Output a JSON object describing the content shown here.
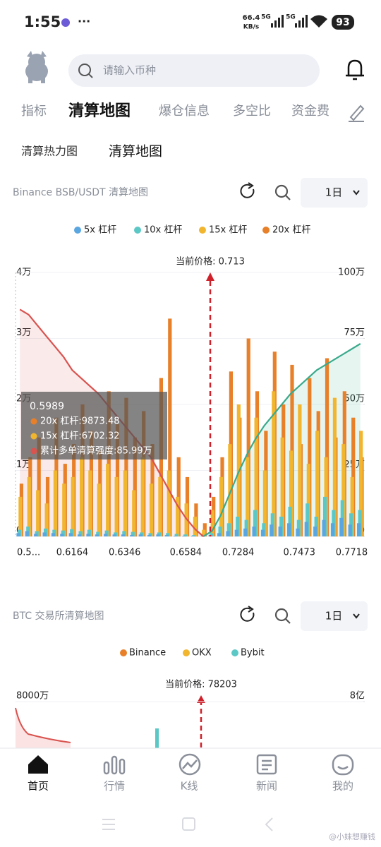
{
  "status_bar": {
    "time": "1:55",
    "speed": "66.4",
    "speed_unit": "KB/s",
    "net1": "5G",
    "net2": "5G",
    "battery": "93"
  },
  "search": {
    "placeholder": "请输入币种"
  },
  "tabs": [
    "指标",
    "清算地图",
    "爆仓信息",
    "多空比",
    "资金费"
  ],
  "subtabs": [
    "清算热力图",
    "清算地图"
  ],
  "chart_data": [
    {
      "type": "bar",
      "title": "Binance BSB/USDT 清算地图",
      "period": "1日",
      "annotation": "当前价格: 0.713",
      "categories": [
        null,
        "0.5...",
        null,
        null,
        null,
        null,
        "0.6164",
        null,
        null,
        null,
        null,
        null,
        "0.6346",
        null,
        null,
        null,
        null,
        null,
        null,
        "0.6584",
        null,
        null,
        null,
        null,
        null,
        "0.7284",
        null,
        null,
        null,
        null,
        null,
        null,
        "0.7473",
        null,
        null,
        null,
        null,
        null,
        "0.7718",
        null
      ],
      "ylim": [
        0,
        40000
      ],
      "yticks": [
        0,
        {
          "value": 10000,
          "label": "1万"
        },
        {
          "value": 20000,
          "label": "2万"
        },
        {
          "value": 30000,
          "label": "3万"
        },
        {
          "value": 40000,
          "label": "4万"
        }
      ],
      "y2lim": [
        0,
        1000000
      ],
      "y2ticks": [
        0,
        {
          "value": 250000,
          "label": "25万"
        },
        {
          "value": 500000,
          "label": "50万"
        },
        {
          "value": 750000,
          "label": "75万"
        },
        {
          "value": 1000000,
          "label": "100万"
        }
      ],
      "grid": true,
      "series": [
        {
          "name": "5x 杠杆",
          "color": "#5aa6e0",
          "values": [
            500,
            800,
            400,
            600,
            500,
            400,
            500,
            300,
            400,
            300,
            400,
            300,
            300,
            200,
            300,
            200,
            300,
            200,
            100,
            100,
            100,
            0,
            200,
            500,
            800,
            1000,
            1200,
            1500,
            1000,
            1800,
            1500,
            2000,
            1200,
            2200,
            1500,
            2500,
            2000,
            2800,
            1800,
            2000
          ]
        },
        {
          "name": "10x 杠杆",
          "color": "#5cc8c6",
          "values": [
            1000,
            1500,
            800,
            1200,
            1000,
            900,
            1100,
            800,
            1000,
            700,
            900,
            600,
            800,
            700,
            600,
            500,
            600,
            500,
            400,
            300,
            200,
            100,
            500,
            1500,
            2000,
            3000,
            2500,
            4000,
            2000,
            3500,
            3000,
            4500,
            2500,
            5000,
            3000,
            6000,
            4000,
            5500,
            3500,
            4000
          ]
        },
        {
          "name": "15x 杠杆",
          "color": "#f2b52e",
          "values": [
            6000,
            9000,
            7000,
            5000,
            10000,
            8000,
            9000,
            12000,
            10000,
            8000,
            11000,
            9000,
            10000,
            7000,
            12000,
            8000,
            9000,
            10000,
            6000,
            5000,
            3000,
            1000,
            4000,
            9000,
            14000,
            20000,
            12000,
            18000,
            10000,
            22000,
            15000,
            13000,
            20000,
            11000,
            16000,
            12000,
            21000,
            14000,
            9000,
            16000
          ]
        },
        {
          "name": "20x 杠杆",
          "color": "#e8802a",
          "values": [
            8000,
            12000,
            15000,
            9000,
            18000,
            11000,
            14000,
            20000,
            16000,
            13000,
            22000,
            17000,
            21000,
            15000,
            19000,
            14000,
            24000,
            33000,
            12000,
            9000,
            5000,
            2000,
            6000,
            12000,
            25000,
            18000,
            30000,
            22000,
            16000,
            28000,
            20000,
            26000,
            14000,
            24000,
            19000,
            27000,
            15000,
            22000,
            18000,
            12000
          ]
        }
      ],
      "lines": [
        {
          "color": "#d9534f",
          "axis": "y2",
          "values": [
            860000,
            840000,
            800000,
            760000,
            720000,
            680000,
            630000,
            600000,
            570000,
            540000,
            500000,
            460000,
            420000,
            380000,
            340000,
            300000,
            240000,
            180000,
            120000,
            70000,
            30000,
            0,
            null,
            null,
            null,
            null,
            null,
            null,
            null,
            null,
            null,
            null,
            null,
            null,
            null,
            null,
            null,
            null,
            null,
            null
          ]
        },
        {
          "color": "#3aaa8c",
          "axis": "y2",
          "values": [
            null,
            null,
            null,
            null,
            null,
            null,
            null,
            null,
            null,
            null,
            null,
            null,
            null,
            null,
            null,
            null,
            null,
            null,
            null,
            null,
            null,
            0,
            20000,
            80000,
            160000,
            240000,
            310000,
            370000,
            420000,
            460000,
            500000,
            540000,
            570000,
            600000,
            630000,
            650000,
            670000,
            690000,
            710000,
            730000
          ]
        }
      ],
      "tooltip": {
        "title": "0.5989",
        "lines": [
          "20x 杠杆:9873.48",
          "15x 杠杆:6702.32",
          "累计多单清算强度:85.99万"
        ]
      }
    },
    {
      "type": "bar",
      "title": "BTC 交易所清算地图",
      "period": "1日",
      "annotation": "当前价格: 78203",
      "legend": [
        {
          "name": "Binance",
          "color": "#e8802a"
        },
        {
          "name": "OKX",
          "color": "#f2b52e"
        },
        {
          "name": "Bybit",
          "color": "#5cc8c6"
        }
      ],
      "yticks": [
        {
          "value": 80000000,
          "label": "8000万"
        }
      ],
      "y2ticks": [
        {
          "value": 800000000,
          "label": "8亿"
        }
      ]
    }
  ],
  "nav": [
    "首页",
    "行情",
    "K线",
    "新闻",
    "我的"
  ],
  "watermark": "@小妹想赚钱"
}
